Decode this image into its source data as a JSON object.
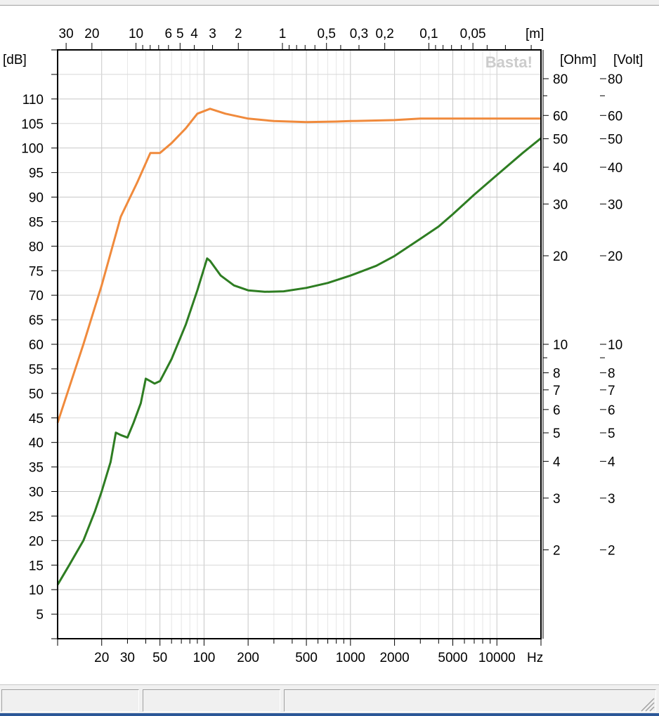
{
  "chart_data": {
    "type": "line",
    "title": "",
    "watermark": "Basta!",
    "x_axis": {
      "label": "Hz",
      "scale": "log",
      "range": [
        10,
        20000
      ],
      "tick_labels": [
        "20",
        "30",
        "50",
        "100",
        "200",
        "500",
        "1000",
        "2000",
        "5000",
        "10000"
      ]
    },
    "top_axis": {
      "label": "[m]",
      "tick_labels": [
        "30",
        "20",
        "10",
        "6",
        "5",
        "4",
        "3",
        "2",
        "1",
        "0,5",
        "0,3",
        "0,2",
        "0,1",
        "0,05"
      ]
    },
    "left_axis": {
      "label": "[dB]",
      "range": [
        0,
        120
      ],
      "tick_labels": [
        "5",
        "10",
        "15",
        "20",
        "25",
        "30",
        "35",
        "40",
        "45",
        "50",
        "55",
        "60",
        "65",
        "70",
        "75",
        "80",
        "85",
        "90",
        "95",
        "100",
        "105",
        "110"
      ]
    },
    "right_axis_ohm": {
      "label": "[Ohm]",
      "scale": "log",
      "tick_labels": [
        "2",
        "3",
        "4",
        "5",
        "6",
        "7",
        "8",
        "10",
        "20",
        "30",
        "40",
        "50",
        "60",
        "80"
      ]
    },
    "right_axis_volt": {
      "label": "[Volt]",
      "scale": "log",
      "tick_labels": [
        "2",
        "3",
        "4",
        "5",
        "6",
        "7",
        "8",
        "10",
        "20",
        "30",
        "40",
        "50",
        "60",
        "80"
      ]
    },
    "grid": true,
    "series": [
      {
        "color": "#f08a3c",
        "x": [
          10,
          15,
          20,
          27,
          35,
          43,
          50,
          60,
          75,
          90,
          110,
          140,
          200,
          300,
          500,
          800,
          1000,
          2000,
          3000,
          5000,
          10000,
          20000
        ],
        "y": [
          44,
          60,
          72,
          86,
          93,
          99,
          99,
          101,
          104,
          107,
          108,
          107,
          106,
          105.5,
          105.3,
          105.4,
          105.5,
          105.7,
          106,
          106,
          106,
          106
        ]
      },
      {
        "color": "#2e7d22",
        "x": [
          10,
          12,
          15,
          18,
          20,
          23,
          25,
          27,
          30,
          33,
          37,
          40,
          43,
          46,
          50,
          60,
          75,
          90,
          105,
          110,
          130,
          160,
          200,
          260,
          350,
          500,
          700,
          1000,
          1500,
          2000,
          3000,
          4000,
          5000,
          7000,
          10000,
          15000,
          20000
        ],
        "y": [
          11,
          15,
          20,
          26,
          30,
          36,
          42,
          41.5,
          41,
          44,
          48,
          53,
          52.5,
          52,
          52.5,
          57,
          64,
          71,
          77.5,
          77,
          74,
          72,
          71,
          70.7,
          70.8,
          71.5,
          72.5,
          74,
          76,
          78,
          81.5,
          84,
          86.5,
          90.5,
          94.5,
          99,
          102
        ]
      }
    ]
  },
  "status_bar": {
    "panels": [
      "",
      "",
      ""
    ]
  }
}
